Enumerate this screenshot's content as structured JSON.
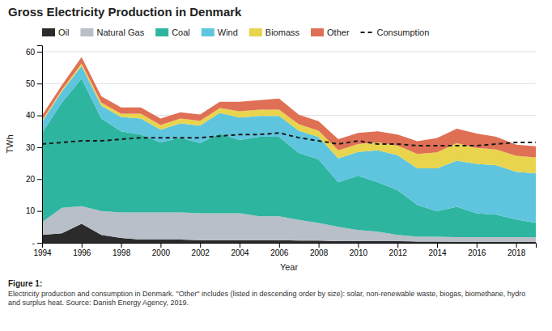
{
  "chart_data": {
    "type": "area",
    "stacked": true,
    "title": "Gross Electricity Production in Denmark",
    "xlabel": "Year",
    "ylabel": "TWh",
    "annotations": [
      "Figure 1:",
      "Electricity production and consumption in Denmark. \"Other\" includes (listed in descending order by size): solar, non-renewable waste, biogas, biomethane, hydro\nand surplus heat. Source: Danish Energy Agency, 2019."
    ],
    "x": [
      1994,
      1995,
      1996,
      1997,
      1998,
      1999,
      2000,
      2001,
      2002,
      2003,
      2004,
      2005,
      2006,
      2007,
      2008,
      2009,
      2010,
      2011,
      2012,
      2013,
      2014,
      2015,
      2016,
      2017,
      2018,
      2019
    ],
    "xlim": [
      1994,
      2019
    ],
    "xticks": [
      1994,
      1996,
      1998,
      2000,
      2002,
      2004,
      2006,
      2008,
      2010,
      2012,
      2014,
      2016,
      2018
    ],
    "ylim": [
      0,
      62
    ],
    "yticks": [
      {
        "value": 0,
        "label": "-"
      },
      10,
      20,
      30,
      40,
      50,
      60
    ],
    "grid": true,
    "legend": "upper left",
    "series": [
      {
        "name": "Oil",
        "color": "#2b2b2b",
        "values": [
          2.5,
          3.0,
          6.0,
          2.5,
          1.5,
          1.0,
          1.0,
          1.0,
          0.8,
          0.8,
          0.8,
          0.8,
          0.8,
          0.7,
          0.7,
          0.5,
          0.5,
          0.5,
          0.5,
          0.4,
          0.4,
          0.3,
          0.3,
          0.3,
          0.3,
          0.3
        ]
      },
      {
        "name": "Natural Gas",
        "color": "#b8bfc8",
        "values": [
          4.0,
          8.0,
          5.5,
          7.5,
          8.0,
          8.5,
          8.5,
          8.5,
          8.5,
          8.5,
          8.5,
          7.5,
          7.5,
          6.5,
          5.5,
          4.5,
          3.5,
          3.0,
          2.0,
          1.5,
          1.5,
          1.5,
          1.5,
          1.5,
          1.5,
          1.5
        ]
      },
      {
        "name": "Coal",
        "color": "#2db5a0",
        "values": [
          28.0,
          33.0,
          40.0,
          29.0,
          25.5,
          24.5,
          22.0,
          23.5,
          22.0,
          25.0,
          23.0,
          25.0,
          25.0,
          21.0,
          20.0,
          14.0,
          17.0,
          15.5,
          14.0,
          10.0,
          8.0,
          9.5,
          7.5,
          7.0,
          5.5,
          4.5
        ]
      },
      {
        "name": "Wind",
        "color": "#5fc5df",
        "values": [
          3.5,
          3.5,
          4.0,
          4.0,
          4.5,
          5.0,
          4.0,
          4.5,
          5.5,
          6.5,
          7.0,
          6.5,
          6.5,
          7.0,
          7.0,
          7.5,
          7.5,
          10.0,
          11.0,
          11.5,
          13.5,
          14.5,
          15.5,
          15.5,
          15.0,
          15.5
        ]
      },
      {
        "name": "Biomass",
        "color": "#e8d44d",
        "values": [
          0.5,
          0.5,
          0.8,
          1.0,
          1.0,
          1.5,
          1.5,
          1.5,
          1.5,
          1.5,
          2.0,
          2.0,
          2.0,
          2.0,
          2.0,
          2.5,
          2.5,
          2.5,
          3.0,
          4.5,
          5.0,
          5.5,
          5.0,
          5.0,
          5.0,
          5.0
        ]
      },
      {
        "name": "Other",
        "color": "#e07055",
        "values": [
          1.5,
          1.5,
          2.0,
          2.0,
          2.0,
          2.0,
          2.0,
          2.0,
          2.0,
          2.0,
          3.0,
          3.0,
          3.5,
          3.0,
          3.0,
          3.5,
          3.5,
          3.5,
          3.5,
          4.0,
          4.5,
          4.5,
          4.5,
          4.0,
          3.5,
          3.5
        ]
      },
      {
        "name": "Consumption",
        "type": "line",
        "line_style": "dashed",
        "color": "#1a1a1a",
        "values": [
          31.0,
          31.5,
          32.0,
          32.0,
          32.5,
          33.0,
          33.0,
          33.0,
          33.0,
          33.5,
          34.0,
          34.0,
          34.5,
          33.0,
          32.0,
          31.0,
          32.0,
          31.0,
          31.0,
          30.5,
          30.5,
          30.5,
          30.5,
          31.0,
          31.5,
          31.5
        ]
      }
    ]
  }
}
